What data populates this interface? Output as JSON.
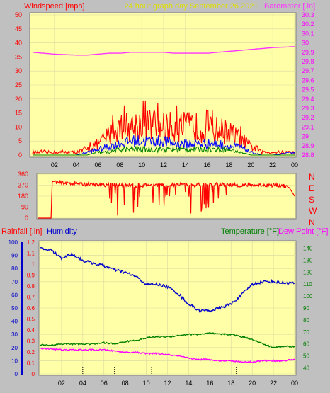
{
  "header": {
    "left_title": "Windspeed [mph]",
    "center_title": "24 hour graph day   September 26 2021",
    "right_title": "Barometer [.in]"
  },
  "colors": {
    "background": "#c0c0c0",
    "plot_bg": "#ffffa8",
    "grid": "#d8d8a0",
    "gust": "#ff0000",
    "wind": "#0000ff",
    "wind_low": "#008000",
    "barometer": "#ff33ff",
    "direction": "#ff0000",
    "humidity": "#0000cc",
    "temperature": "#008000",
    "dew_point": "#ff00ff",
    "rain": "#ff0000",
    "title_yellow": "#e0e000",
    "axis_text_red": "#ff0000",
    "axis_text_magenta": "#ff00ff"
  },
  "chart_data": [
    {
      "type": "line",
      "panel": "wind_barometer",
      "title": "24 hour graph day   September 26 2021",
      "x_ticks": [
        "02",
        "04",
        "06",
        "08",
        "10",
        "12",
        "14",
        "16",
        "18",
        "20",
        "22",
        "00"
      ],
      "y_left": {
        "label": "Windspeed [mph]",
        "ticks": [
          0,
          5,
          10,
          15,
          20,
          25,
          30,
          35,
          40,
          45,
          50
        ],
        "range": [
          0,
          50
        ]
      },
      "y_right": {
        "label": "Barometer [.in]",
        "ticks": [
          "28.8",
          "28.9",
          "29",
          "29.1",
          "29.2",
          "29.3",
          "29.4",
          "29.5",
          "29.6",
          "29.7",
          "29.8",
          "29.9",
          "30",
          "30.1",
          "30.2",
          "30.3"
        ],
        "range": [
          28.8,
          30.3
        ]
      },
      "hours": [
        0,
        2,
        4,
        5,
        6,
        7,
        8,
        9,
        10,
        11,
        12,
        13,
        14,
        15,
        16,
        17,
        18,
        19,
        20,
        21,
        22,
        24
      ],
      "series": [
        {
          "name": "Wind gust",
          "axis": "left",
          "values": [
            1,
            1,
            1,
            2,
            4,
            7,
            10,
            10,
            11,
            11,
            10,
            10,
            10,
            10,
            9,
            9,
            8,
            6,
            3,
            1,
            1,
            1
          ]
        },
        {
          "name": "Wind speed",
          "axis": "left",
          "values": [
            0,
            0,
            0,
            1,
            2,
            3,
            4,
            5,
            5,
            5,
            5,
            4,
            4,
            4,
            4,
            4,
            3,
            3,
            1,
            0,
            0,
            1
          ]
        },
        {
          "name": "Wind low",
          "axis": "left",
          "values": [
            0,
            0,
            0,
            0,
            1,
            1,
            2,
            2,
            2,
            2,
            2,
            2,
            2,
            2,
            2,
            2,
            2,
            1,
            0,
            0,
            0,
            0
          ]
        },
        {
          "name": "Barometer",
          "axis": "right",
          "values": [
            29.9,
            29.88,
            29.87,
            29.87,
            29.88,
            29.89,
            29.89,
            29.9,
            29.9,
            29.9,
            29.9,
            29.89,
            29.89,
            29.89,
            29.89,
            29.9,
            29.91,
            29.92,
            29.93,
            29.94,
            29.95,
            29.96
          ]
        }
      ]
    },
    {
      "type": "line",
      "panel": "wind_direction",
      "y_left": {
        "ticks": [
          0,
          90,
          180,
          270,
          360
        ],
        "range": [
          0,
          360
        ]
      },
      "y_right": {
        "ticks": [
          "N",
          "W",
          "S",
          "E",
          "N"
        ]
      },
      "hours": [
        0,
        1.2,
        1.3,
        2,
        3,
        4,
        5,
        6,
        7,
        8,
        9,
        10,
        11,
        12,
        13,
        14,
        15,
        16,
        17,
        18,
        19,
        20,
        21,
        22,
        23,
        23.5,
        24
      ],
      "series": [
        {
          "name": "Wind direction",
          "values": [
            0,
            0,
            300,
            290,
            285,
            280,
            275,
            270,
            275,
            270,
            265,
            270,
            270,
            270,
            275,
            270,
            275,
            275,
            280,
            270,
            270,
            270,
            270,
            270,
            265,
            250,
            180
          ]
        }
      ]
    },
    {
      "type": "line",
      "panel": "rain_humidity_temperature",
      "y_left": {
        "label": "Humidity",
        "ticks": [
          0,
          10,
          20,
          30,
          40,
          50,
          60,
          70,
          80,
          90,
          100
        ],
        "range": [
          0,
          100
        ]
      },
      "y_rain": {
        "label": "Rainfall [.in]",
        "ticks": [
          "0",
          "0.1",
          "0.2",
          "0.3",
          "0.4",
          "0.5",
          "0.6",
          "0.7",
          "0.8",
          "0.9",
          "1",
          "1.1",
          "1.2"
        ],
        "range": [
          0,
          1.2
        ]
      },
      "y_right": {
        "label": "Temperature [°F]",
        "label2": "Dew Point [°F]",
        "ticks": [
          40,
          50,
          60,
          70,
          80,
          90,
          100,
          110,
          120,
          130,
          140
        ],
        "range": [
          35,
          145
        ]
      },
      "x_ticks": [
        "02",
        "04",
        "06",
        "08",
        "10",
        "12",
        "14",
        "16",
        "18",
        "20",
        "22",
        "00"
      ],
      "hours": [
        0,
        1,
        2,
        3,
        4,
        5,
        6,
        7,
        8,
        9,
        10,
        11,
        12,
        13,
        14,
        15,
        16,
        17,
        18,
        19,
        20,
        21,
        22,
        23,
        24
      ],
      "series": [
        {
          "name": "Humidity",
          "axis": "left",
          "values": [
            95,
            94,
            88,
            91,
            86,
            84,
            82,
            79,
            77,
            74,
            68,
            68,
            66,
            61,
            53,
            48,
            48,
            50,
            53,
            60,
            68,
            70,
            70,
            69,
            69
          ]
        },
        {
          "name": "Temperature",
          "axis": "right",
          "values": [
            59,
            59,
            60,
            60,
            60,
            60,
            61,
            60,
            62,
            63,
            65,
            66,
            66,
            67,
            68,
            68,
            69,
            68,
            68,
            66,
            64,
            60,
            57,
            58,
            58
          ]
        },
        {
          "name": "Dew Point",
          "axis": "right",
          "values": [
            56,
            56,
            55,
            55,
            55,
            55,
            55,
            54,
            53,
            53,
            52,
            52,
            51,
            50,
            48,
            47,
            47,
            46,
            46,
            45,
            45,
            46,
            46,
            46,
            47
          ]
        }
      ],
      "rain_markers_hours": [
        4,
        7,
        10.5,
        18.5
      ]
    }
  ]
}
